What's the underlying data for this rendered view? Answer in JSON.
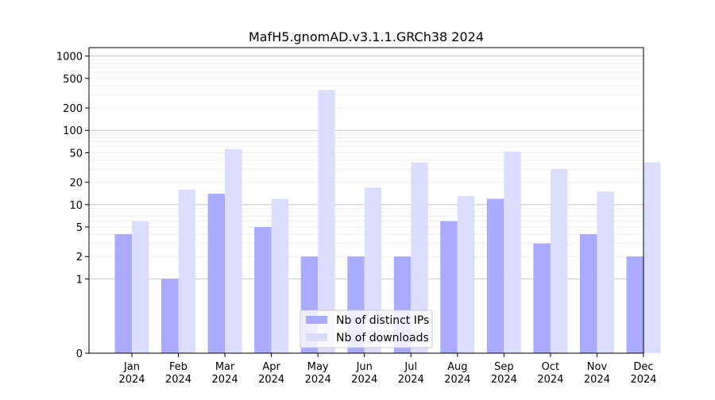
{
  "chart_data": {
    "type": "bar",
    "title": "MafH5.gnomAD.v3.1.1.GRCh38 2024",
    "xlabel": "",
    "ylabel": "",
    "yscale": "symlog",
    "ylim": [
      0,
      1300
    ],
    "yticks": [
      0,
      1,
      2,
      5,
      10,
      20,
      50,
      100,
      200,
      500,
      1000
    ],
    "grid": "y",
    "legend_position": "lower-center",
    "categories": [
      "Jan\n2024",
      "Feb\n2024",
      "Mar\n2024",
      "Apr\n2024",
      "May\n2024",
      "Jun\n2024",
      "Jul\n2024",
      "Aug\n2024",
      "Sep\n2024",
      "Oct\n2024",
      "Nov\n2024",
      "Dec\n2024"
    ],
    "series": [
      {
        "name": "Nb of distinct IPs",
        "color": "#aaaaff",
        "values": [
          4,
          1,
          14,
          5,
          2,
          2,
          2,
          6,
          12,
          3,
          4,
          2
        ]
      },
      {
        "name": "Nb of downloads",
        "color": "#ddddff",
        "values": [
          6,
          16,
          56,
          12,
          350,
          17,
          37,
          13,
          52,
          30,
          15,
          37
        ]
      }
    ]
  }
}
